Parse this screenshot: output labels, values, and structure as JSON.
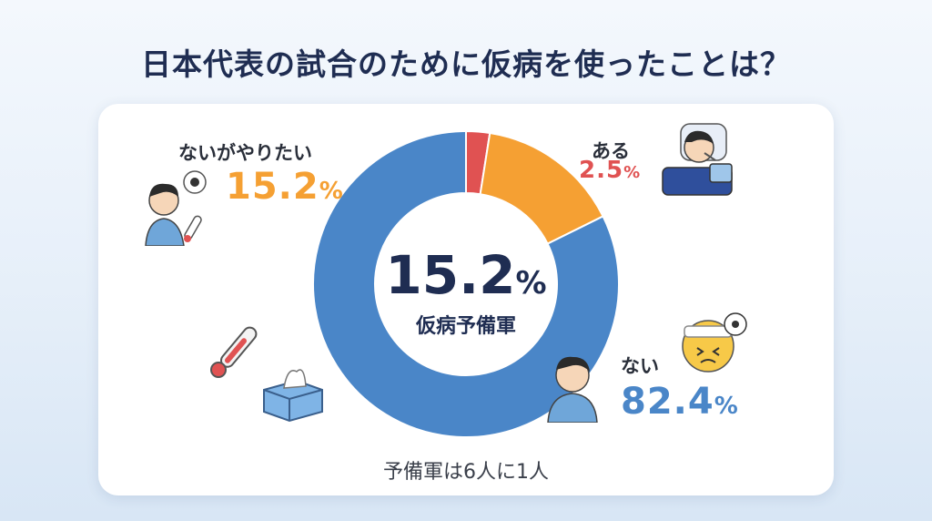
{
  "title": "日本代表の試合のために仮病を使ったことは？",
  "center": {
    "value": "15.2",
    "unit": "%",
    "label": "仮病予備軍"
  },
  "footnote": "予備軍は6人に1人",
  "colors": {
    "title": "#1f2d52",
    "aru": "#e05252",
    "yaritai": "#f5a033",
    "nai": "#4a86c8"
  },
  "icons": [
    "thermometer-icon",
    "tissue-box-icon",
    "soccer-ball-icon",
    "sick-face-icon",
    "person-icon"
  ],
  "chart_data": {
    "type": "pie",
    "donut": true,
    "title": "日本代表の試合のために仮病を使ったことは？",
    "slices": [
      {
        "label": "ある",
        "value": 2.5,
        "display": "2.5",
        "unit": "%",
        "color": "#e05252"
      },
      {
        "label": "ないがやりたい",
        "value": 15.2,
        "display": "15.2",
        "unit": "%",
        "color": "#f5a033"
      },
      {
        "label": "ない",
        "value": 82.4,
        "display": "82.4",
        "unit": "%",
        "color": "#4a86c8"
      }
    ]
  }
}
